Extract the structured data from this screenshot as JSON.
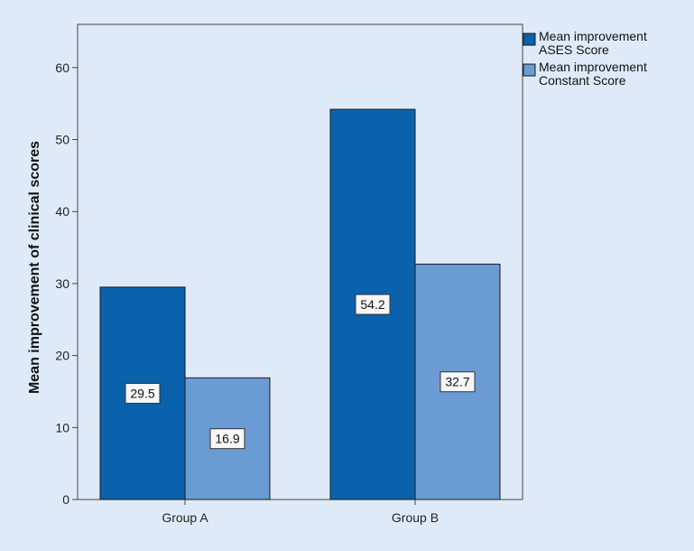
{
  "colors": {
    "background": "#deeaf8",
    "ases": "#0a62ac",
    "constant": "#6b9bd3",
    "axis": "#444444"
  },
  "chart_data": {
    "type": "bar",
    "categories": [
      "Group A",
      "Group B"
    ],
    "series": [
      {
        "name": [
          "Mean improvement",
          "ASES Score"
        ],
        "values": [
          29.5,
          54.2
        ]
      },
      {
        "name": [
          "Mean improvement",
          "Constant Score"
        ],
        "values": [
          16.9,
          32.7
        ]
      }
    ],
    "data_labels": [
      [
        "29.5",
        "54.2"
      ],
      [
        "16.9",
        "32.7"
      ]
    ],
    "title": "",
    "xlabel": "",
    "ylabel": "Mean improvement of clinical scores",
    "ylim": [
      0,
      66
    ],
    "yticks": [
      0,
      10,
      20,
      30,
      40,
      50,
      60
    ],
    "grid": false,
    "legend_position": "top-right"
  }
}
